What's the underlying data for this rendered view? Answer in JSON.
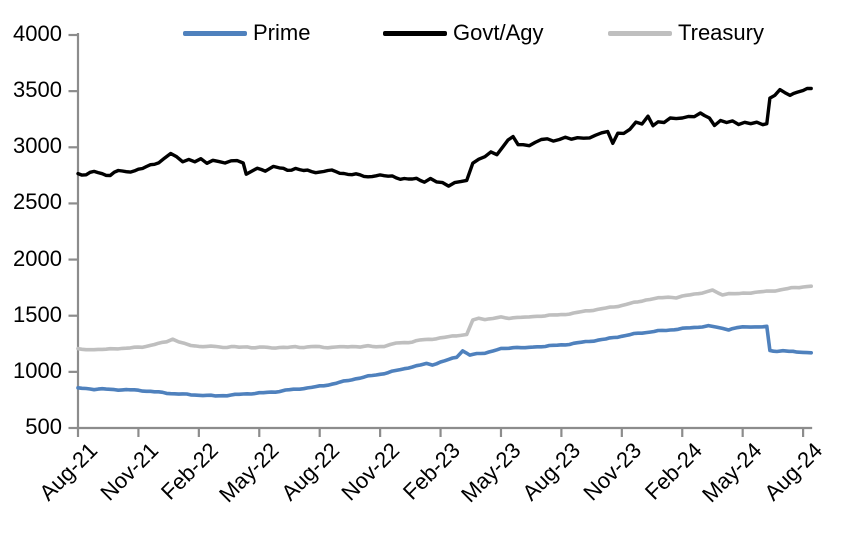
{
  "chart_data": {
    "type": "line",
    "title": "",
    "xlabel": "",
    "ylabel": "",
    "x_unit": "months since Aug-2021 (fractional)",
    "ylim": [
      500,
      4000
    ],
    "y_ticks": [
      4000,
      3500,
      3000,
      2500,
      2000,
      1500,
      1000,
      500
    ],
    "x_tick_labels": [
      "Aug-21",
      "Nov-21",
      "Feb-22",
      "May-22",
      "Aug-22",
      "Nov-22",
      "Feb-23",
      "May-23",
      "Aug-23",
      "Nov-23",
      "Feb-24",
      "May-24",
      "Aug-24"
    ],
    "legend_position": "top",
    "grid": false,
    "axis_color": "#8c8c8c",
    "series": [
      {
        "name": "Prime",
        "color": "#4F81BD",
        "points": [
          [
            0,
            853
          ],
          [
            0.4,
            850
          ],
          [
            0.8,
            846
          ],
          [
            1.2,
            848
          ],
          [
            1.6,
            844
          ],
          [
            2,
            842
          ],
          [
            2.4,
            840
          ],
          [
            2.8,
            836
          ],
          [
            3.2,
            832
          ],
          [
            3.6,
            826
          ],
          [
            4,
            820
          ],
          [
            4.4,
            812
          ],
          [
            4.8,
            806
          ],
          [
            5.2,
            800
          ],
          [
            5.6,
            795
          ],
          [
            6,
            792
          ],
          [
            6.4,
            789
          ],
          [
            6.8,
            787
          ],
          [
            7.2,
            790
          ],
          [
            7.6,
            794
          ],
          [
            8,
            798
          ],
          [
            8.4,
            804
          ],
          [
            8.8,
            808
          ],
          [
            9.2,
            813
          ],
          [
            9.6,
            820
          ],
          [
            10,
            828
          ],
          [
            10.3,
            838
          ],
          [
            10.7,
            842
          ],
          [
            11,
            848
          ],
          [
            11.4,
            856
          ],
          [
            11.8,
            866
          ],
          [
            12.2,
            878
          ],
          [
            12.6,
            892
          ],
          [
            13,
            908
          ],
          [
            13.4,
            922
          ],
          [
            13.8,
            938
          ],
          [
            14.2,
            952
          ],
          [
            14.6,
            966
          ],
          [
            15,
            980
          ],
          [
            15.4,
            996
          ],
          [
            15.8,
            1012
          ],
          [
            16.2,
            1028
          ],
          [
            16.6,
            1045
          ],
          [
            17,
            1058
          ],
          [
            17.3,
            1072
          ],
          [
            17.6,
            1064
          ],
          [
            18,
            1088
          ],
          [
            18.4,
            1110
          ],
          [
            18.8,
            1132
          ],
          [
            19.1,
            1188
          ],
          [
            19.45,
            1148
          ],
          [
            19.8,
            1158
          ],
          [
            20.2,
            1168
          ],
          [
            20.6,
            1188
          ],
          [
            21,
            1205
          ],
          [
            21.4,
            1213
          ],
          [
            21.8,
            1220
          ],
          [
            22.2,
            1210
          ],
          [
            22.6,
            1220
          ],
          [
            23,
            1226
          ],
          [
            23.4,
            1232
          ],
          [
            23.8,
            1238
          ],
          [
            24.2,
            1244
          ],
          [
            24.6,
            1252
          ],
          [
            25,
            1262
          ],
          [
            25.4,
            1272
          ],
          [
            25.8,
            1282
          ],
          [
            26.2,
            1292
          ],
          [
            26.6,
            1308
          ],
          [
            27,
            1318
          ],
          [
            27.4,
            1330
          ],
          [
            27.8,
            1342
          ],
          [
            28.2,
            1350
          ],
          [
            28.6,
            1360
          ],
          [
            29,
            1368
          ],
          [
            29.4,
            1375
          ],
          [
            29.8,
            1382
          ],
          [
            30.2,
            1388
          ],
          [
            30.6,
            1395
          ],
          [
            31,
            1402
          ],
          [
            31.3,
            1408
          ],
          [
            31.7,
            1398
          ],
          [
            32,
            1390
          ],
          [
            32.3,
            1376
          ],
          [
            32.7,
            1392
          ],
          [
            33,
            1398
          ],
          [
            33.4,
            1402
          ],
          [
            33.8,
            1398
          ],
          [
            34.2,
            1402
          ],
          [
            34.35,
            1190
          ],
          [
            34.7,
            1186
          ],
          [
            35,
            1190
          ],
          [
            35.3,
            1182
          ],
          [
            35.7,
            1176
          ],
          [
            36,
            1174
          ],
          [
            36.4,
            1170
          ]
        ]
      },
      {
        "name": "Govt/Agy",
        "color": "#000000",
        "points": [
          [
            0,
            2770
          ],
          [
            0.4,
            2760
          ],
          [
            0.8,
            2782
          ],
          [
            1.2,
            2762
          ],
          [
            1.6,
            2752
          ],
          [
            2,
            2788
          ],
          [
            2.4,
            2778
          ],
          [
            2.8,
            2800
          ],
          [
            3.2,
            2812
          ],
          [
            3.6,
            2838
          ],
          [
            4,
            2868
          ],
          [
            4.3,
            2902
          ],
          [
            4.6,
            2938
          ],
          [
            4.9,
            2908
          ],
          [
            5.2,
            2878
          ],
          [
            5.5,
            2898
          ],
          [
            5.8,
            2872
          ],
          [
            6.1,
            2892
          ],
          [
            6.4,
            2862
          ],
          [
            6.7,
            2888
          ],
          [
            7,
            2872
          ],
          [
            7.3,
            2848
          ],
          [
            7.6,
            2878
          ],
          [
            7.9,
            2885
          ],
          [
            8.2,
            2868
          ],
          [
            8.35,
            2758
          ],
          [
            8.6,
            2782
          ],
          [
            8.9,
            2812
          ],
          [
            9.3,
            2798
          ],
          [
            9.7,
            2822
          ],
          [
            10,
            2810
          ],
          [
            10.4,
            2798
          ],
          [
            10.8,
            2812
          ],
          [
            11.2,
            2792
          ],
          [
            11.6,
            2788
          ],
          [
            12,
            2782
          ],
          [
            12.4,
            2790
          ],
          [
            12.8,
            2778
          ],
          [
            13.2,
            2768
          ],
          [
            13.6,
            2758
          ],
          [
            14,
            2752
          ],
          [
            14.4,
            2742
          ],
          [
            14.8,
            2752
          ],
          [
            15.2,
            2738
          ],
          [
            15.6,
            2742
          ],
          [
            16,
            2722
          ],
          [
            16.4,
            2712
          ],
          [
            16.8,
            2722
          ],
          [
            17.2,
            2702
          ],
          [
            17.5,
            2718
          ],
          [
            17.8,
            2688
          ],
          [
            18.1,
            2678
          ],
          [
            18.4,
            2662
          ],
          [
            18.7,
            2682
          ],
          [
            19,
            2692
          ],
          [
            19.3,
            2698
          ],
          [
            19.6,
            2858
          ],
          [
            19.9,
            2898
          ],
          [
            20.2,
            2918
          ],
          [
            20.5,
            2948
          ],
          [
            20.8,
            2938
          ],
          [
            21.1,
            3005
          ],
          [
            21.35,
            3068
          ],
          [
            21.6,
            3085
          ],
          [
            21.85,
            3018
          ],
          [
            22.1,
            3028
          ],
          [
            22.4,
            3022
          ],
          [
            22.7,
            3048
          ],
          [
            23,
            3062
          ],
          [
            23.3,
            3075
          ],
          [
            23.6,
            3058
          ],
          [
            23.9,
            3072
          ],
          [
            24.2,
            3080
          ],
          [
            24.5,
            3068
          ],
          [
            24.8,
            3088
          ],
          [
            25.1,
            3092
          ],
          [
            25.4,
            3082
          ],
          [
            25.7,
            3105
          ],
          [
            26,
            3128
          ],
          [
            26.3,
            3148
          ],
          [
            26.55,
            3032
          ],
          [
            26.8,
            3122
          ],
          [
            27.1,
            3112
          ],
          [
            27.4,
            3168
          ],
          [
            27.7,
            3228
          ],
          [
            28,
            3212
          ],
          [
            28.3,
            3268
          ],
          [
            28.55,
            3195
          ],
          [
            28.8,
            3232
          ],
          [
            29.1,
            3225
          ],
          [
            29.4,
            3252
          ],
          [
            29.7,
            3248
          ],
          [
            30,
            3262
          ],
          [
            30.3,
            3282
          ],
          [
            30.6,
            3272
          ],
          [
            30.9,
            3302
          ],
          [
            31.1,
            3285
          ],
          [
            31.35,
            3262
          ],
          [
            31.6,
            3205
          ],
          [
            31.9,
            3232
          ],
          [
            32.2,
            3215
          ],
          [
            32.5,
            3228
          ],
          [
            32.8,
            3212
          ],
          [
            33.1,
            3222
          ],
          [
            33.4,
            3210
          ],
          [
            33.7,
            3218
          ],
          [
            34,
            3212
          ],
          [
            34.2,
            3218
          ],
          [
            34.35,
            3438
          ],
          [
            34.6,
            3462
          ],
          [
            34.85,
            3502
          ],
          [
            35.1,
            3482
          ],
          [
            35.35,
            3468
          ],
          [
            35.7,
            3492
          ],
          [
            36,
            3502
          ],
          [
            36.4,
            3528
          ]
        ]
      },
      {
        "name": "Treasury",
        "color": "#BFBFBF",
        "points": [
          [
            0,
            1202
          ],
          [
            0.4,
            1196
          ],
          [
            0.8,
            1202
          ],
          [
            1.2,
            1198
          ],
          [
            1.6,
            1205
          ],
          [
            2,
            1210
          ],
          [
            2.4,
            1208
          ],
          [
            2.8,
            1215
          ],
          [
            3.2,
            1222
          ],
          [
            3.6,
            1235
          ],
          [
            4,
            1252
          ],
          [
            4.4,
            1272
          ],
          [
            4.7,
            1292
          ],
          [
            5,
            1268
          ],
          [
            5.3,
            1248
          ],
          [
            5.6,
            1235
          ],
          [
            6,
            1228
          ],
          [
            6.4,
            1224
          ],
          [
            6.8,
            1228
          ],
          [
            7.2,
            1220
          ],
          [
            7.6,
            1224
          ],
          [
            8,
            1218
          ],
          [
            8.4,
            1222
          ],
          [
            8.8,
            1214
          ],
          [
            9.2,
            1220
          ],
          [
            9.6,
            1214
          ],
          [
            10,
            1220
          ],
          [
            10.4,
            1216
          ],
          [
            10.8,
            1222
          ],
          [
            11.2,
            1218
          ],
          [
            11.6,
            1224
          ],
          [
            12,
            1222
          ],
          [
            12.4,
            1218
          ],
          [
            12.8,
            1224
          ],
          [
            13.2,
            1220
          ],
          [
            13.6,
            1226
          ],
          [
            14,
            1222
          ],
          [
            14.4,
            1228
          ],
          [
            14.8,
            1224
          ],
          [
            15.2,
            1230
          ],
          [
            15.5,
            1242
          ],
          [
            15.8,
            1256
          ],
          [
            16.2,
            1260
          ],
          [
            16.6,
            1266
          ],
          [
            17,
            1282
          ],
          [
            17.4,
            1288
          ],
          [
            17.8,
            1298
          ],
          [
            18.2,
            1308
          ],
          [
            18.6,
            1318
          ],
          [
            19,
            1328
          ],
          [
            19.3,
            1332
          ],
          [
            19.6,
            1462
          ],
          [
            19.9,
            1475
          ],
          [
            20.2,
            1468
          ],
          [
            20.6,
            1478
          ],
          [
            21,
            1486
          ],
          [
            21.4,
            1478
          ],
          [
            21.8,
            1488
          ],
          [
            22.2,
            1482
          ],
          [
            22.6,
            1492
          ],
          [
            23,
            1498
          ],
          [
            23.4,
            1504
          ],
          [
            23.8,
            1508
          ],
          [
            24.2,
            1514
          ],
          [
            24.6,
            1522
          ],
          [
            25,
            1534
          ],
          [
            25.4,
            1546
          ],
          [
            25.8,
            1556
          ],
          [
            26.2,
            1568
          ],
          [
            26.6,
            1580
          ],
          [
            27,
            1592
          ],
          [
            27.4,
            1608
          ],
          [
            27.8,
            1622
          ],
          [
            28.2,
            1640
          ],
          [
            28.6,
            1652
          ],
          [
            29,
            1660
          ],
          [
            29.3,
            1668
          ],
          [
            29.7,
            1662
          ],
          [
            30,
            1672
          ],
          [
            30.4,
            1686
          ],
          [
            30.8,
            1698
          ],
          [
            31.2,
            1710
          ],
          [
            31.5,
            1728
          ],
          [
            31.8,
            1700
          ],
          [
            32,
            1688
          ],
          [
            32.3,
            1700
          ],
          [
            32.6,
            1694
          ],
          [
            33,
            1698
          ],
          [
            33.4,
            1704
          ],
          [
            33.8,
            1710
          ],
          [
            34.2,
            1716
          ],
          [
            34.6,
            1724
          ],
          [
            35,
            1736
          ],
          [
            35.4,
            1746
          ],
          [
            35.8,
            1752
          ],
          [
            36,
            1756
          ],
          [
            36.4,
            1763
          ]
        ]
      }
    ]
  }
}
